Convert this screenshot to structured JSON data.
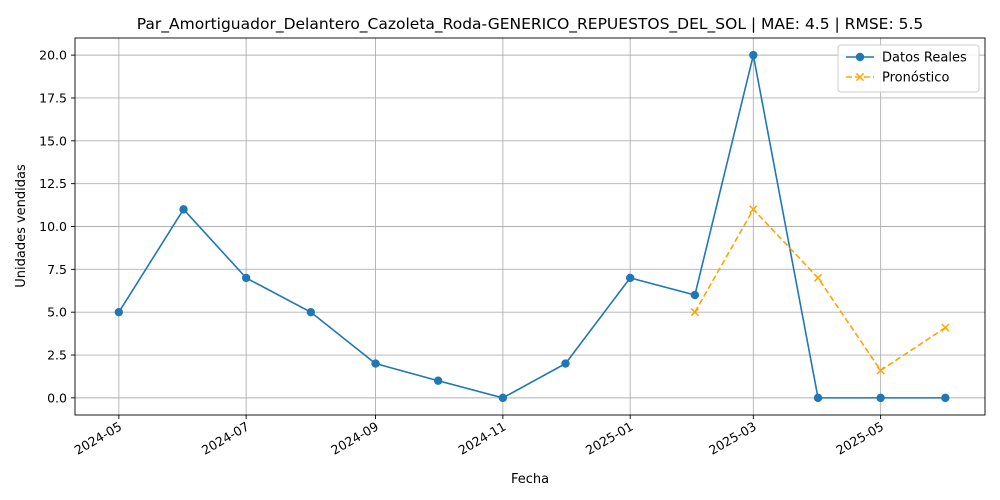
{
  "chart_data": {
    "type": "line",
    "title": "Par_Amortiguador_Delantero_Cazoleta_Roda-GENERICO_REPUESTOS_DEL_SOL | MAE: 4.5 | RMSE: 5.5",
    "xlabel": "Fecha",
    "ylabel": "Unidades vendidas",
    "xlim": [
      "2024-04-10",
      "2025-06-20"
    ],
    "ylim": [
      -1.0,
      21.0
    ],
    "grid": true,
    "legend_position": "top-right",
    "x_ticks": [
      "2024-05",
      "2024-07",
      "2024-09",
      "2024-11",
      "2025-01",
      "2025-03",
      "2025-05"
    ],
    "y_ticks": [
      "0.0",
      "2.5",
      "5.0",
      "7.5",
      "10.0",
      "12.5",
      "15.0",
      "17.5",
      "20.0"
    ],
    "series": [
      {
        "name": "Datos Reales",
        "color": "#1f77b4",
        "line_style": "solid",
        "marker": "circle",
        "x": [
          "2024-05-01",
          "2024-06-01",
          "2024-07-01",
          "2024-08-01",
          "2024-09-01",
          "2024-10-01",
          "2024-11-01",
          "2024-12-01",
          "2025-01-01",
          "2025-02-01",
          "2025-03-01",
          "2025-04-01",
          "2025-05-01",
          "2025-06-01"
        ],
        "y": [
          5,
          11,
          7,
          5,
          2,
          1,
          0,
          2,
          7,
          6,
          20,
          0,
          0,
          0
        ]
      },
      {
        "name": "Pronóstico",
        "color": "#ffa500",
        "line_style": "dashed",
        "marker": "x",
        "x": [
          "2025-02-01",
          "2025-03-01",
          "2025-04-01",
          "2025-05-01",
          "2025-06-01"
        ],
        "y": [
          5.0,
          11.0,
          7.0,
          1.6,
          4.1
        ]
      }
    ]
  }
}
